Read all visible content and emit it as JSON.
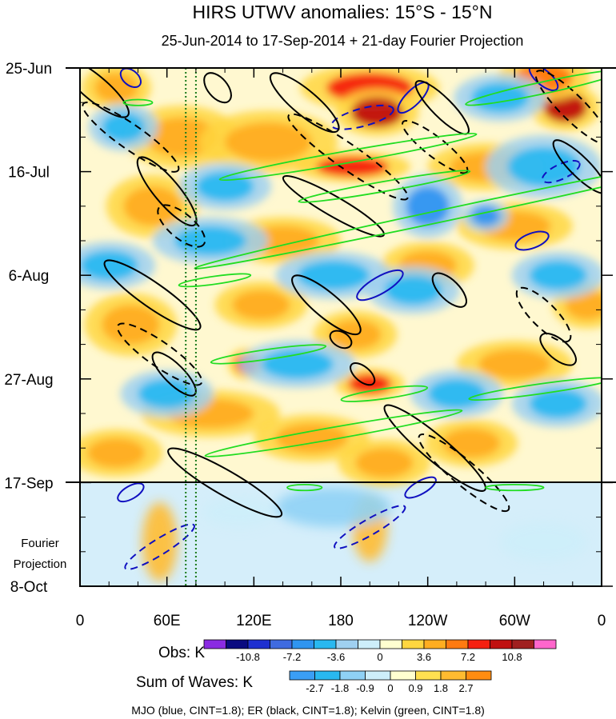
{
  "chart_data": {
    "type": "heatmap",
    "title": "HIRS UTWV anomalies: 15°S - 15°N",
    "subtitle": "25-Jun-2014 to 17-Sep-2014 + 21-day Fourier Projection",
    "x_tick_labels": [
      "0",
      "60E",
      "120E",
      "180",
      "120W",
      "60W",
      "0"
    ],
    "x_ticks_lon": [
      0,
      60,
      120,
      180,
      240,
      300,
      360
    ],
    "y_tick_labels": [
      "25-Jun",
      "16-Jul",
      "6-Aug",
      "27-Aug",
      "17-Sep",
      "8-Oct"
    ],
    "y_ticks_day": [
      0,
      21,
      42,
      63,
      84,
      105
    ],
    "projection_label": "Fourier Projection",
    "projection_start_day": 84,
    "dotted_lines_lon": [
      73,
      80
    ],
    "obs_colorbar": {
      "label": "Obs: K",
      "tick_labels": [
        "-10.8",
        "-7.2",
        "-3.6",
        "0",
        "3.6",
        "7.2",
        "10.8"
      ],
      "colors": [
        "#8a2be2",
        "#0a0a80",
        "#1e2fd0",
        "#3f6be0",
        "#2f95f0",
        "#29b8f0",
        "#9fd0f0",
        "#cdeefa",
        "#ffffd0",
        "#ffd640",
        "#ffad20",
        "#ff7a10",
        "#f52010",
        "#c01010",
        "#a02020",
        "#ff66cc"
      ]
    },
    "waves_colorbar": {
      "label": "Sum of Waves: K",
      "tick_labels": [
        "-2.7",
        "-1.8",
        "-0.9",
        "0",
        "0.9",
        "1.8",
        "2.7"
      ],
      "colors": [
        "#3a9ef5",
        "#29b8f0",
        "#8fd1f5",
        "#cdeefa",
        "#ffffd0",
        "#ffe050",
        "#ffbb30",
        "#ff8c10"
      ]
    },
    "footer": "MJO (blue, CINT=1.8); ER (black, CINT=1.8); Kelvin (green, CINT=1.8)",
    "anomaly_hotspots": [
      {
        "lon": 200,
        "day": 4,
        "value": 8,
        "rx": 30,
        "ry": 3
      },
      {
        "lon": 205,
        "day": 9,
        "value": 10,
        "rx": 18,
        "ry": 3
      },
      {
        "lon": 188,
        "day": 20,
        "value": 9,
        "rx": 25,
        "ry": 2
      },
      {
        "lon": 335,
        "day": 8,
        "value": 10,
        "rx": 15,
        "ry": 3
      },
      {
        "lon": 320,
        "day": 2,
        "value": 6,
        "rx": 20,
        "ry": 3
      },
      {
        "lon": 25,
        "day": 4,
        "value": 5,
        "rx": 15,
        "ry": 3
      },
      {
        "lon": 70,
        "day": 14,
        "value": 4,
        "rx": 25,
        "ry": 4
      },
      {
        "lon": 130,
        "day": 15,
        "value": 4,
        "rx": 30,
        "ry": 4
      },
      {
        "lon": 280,
        "day": 20,
        "value": 4,
        "rx": 25,
        "ry": 3
      },
      {
        "lon": 50,
        "day": 28,
        "value": 4,
        "rx": 20,
        "ry": 4
      },
      {
        "lon": 140,
        "day": 35,
        "value": 4,
        "rx": 25,
        "ry": 3
      },
      {
        "lon": 300,
        "day": 32,
        "value": 4,
        "rx": 25,
        "ry": 3
      },
      {
        "lon": 240,
        "day": 40,
        "value": 4,
        "rx": 20,
        "ry": 3
      },
      {
        "lon": 35,
        "day": 52,
        "value": 4,
        "rx": 20,
        "ry": 4
      },
      {
        "lon": 125,
        "day": 48,
        "value": 4,
        "rx": 20,
        "ry": 3
      },
      {
        "lon": 190,
        "day": 54,
        "value": 5,
        "rx": 18,
        "ry": 3
      },
      {
        "lon": 350,
        "day": 48,
        "value": 4,
        "rx": 15,
        "ry": 3
      },
      {
        "lon": 115,
        "day": 60,
        "value": 8,
        "rx": 8,
        "ry": 2
      },
      {
        "lon": 200,
        "day": 64,
        "value": 8,
        "rx": 15,
        "ry": 2
      },
      {
        "lon": 300,
        "day": 60,
        "value": 4,
        "rx": 25,
        "ry": 3
      },
      {
        "lon": 90,
        "day": 70,
        "value": 4,
        "rx": 30,
        "ry": 3
      },
      {
        "lon": 160,
        "day": 75,
        "value": 5,
        "rx": 25,
        "ry": 3
      },
      {
        "lon": 270,
        "day": 76,
        "value": 5,
        "rx": 20,
        "ry": 3
      },
      {
        "lon": 25,
        "day": 78,
        "value": 4,
        "rx": 20,
        "ry": 3
      },
      {
        "lon": 210,
        "day": 80,
        "value": 4,
        "rx": 20,
        "ry": 3
      },
      {
        "lon": 240,
        "day": 28,
        "value": -6,
        "rx": 15,
        "ry": 4
      },
      {
        "lon": 230,
        "day": 45,
        "value": -5,
        "rx": 20,
        "ry": 3
      },
      {
        "lon": 280,
        "day": 30,
        "value": -6,
        "rx": 10,
        "ry": 2
      },
      {
        "lon": 90,
        "day": 35,
        "value": -4,
        "rx": 25,
        "ry": 3
      },
      {
        "lon": 320,
        "day": 20,
        "value": -4,
        "rx": 25,
        "ry": 4
      },
      {
        "lon": 20,
        "day": 40,
        "value": -4,
        "rx": 20,
        "ry": 3
      },
      {
        "lon": 175,
        "day": 42,
        "value": -4,
        "rx": 25,
        "ry": 3
      },
      {
        "lon": 330,
        "day": 42,
        "value": -5,
        "rx": 20,
        "ry": 3
      },
      {
        "lon": 60,
        "day": 66,
        "value": -5,
        "rx": 20,
        "ry": 3
      },
      {
        "lon": 150,
        "day": 60,
        "value": -4,
        "rx": 25,
        "ry": 3
      },
      {
        "lon": 260,
        "day": 66,
        "value": -5,
        "rx": 20,
        "ry": 3
      },
      {
        "lon": 330,
        "day": 68,
        "value": -4,
        "rx": 20,
        "ry": 3
      },
      {
        "lon": 100,
        "day": 24,
        "value": -4,
        "rx": 20,
        "ry": 3
      },
      {
        "lon": 30,
        "day": 12,
        "value": -4,
        "rx": 15,
        "ry": 3
      },
      {
        "lon": 290,
        "day": 6,
        "value": -4,
        "rx": 20,
        "ry": 3
      }
    ],
    "projection_blobs": [
      {
        "lon": 55,
        "day": 96,
        "value": 1.8,
        "rx": 12,
        "ry": 8
      },
      {
        "lon": 200,
        "day": 93,
        "value": 1.8,
        "rx": 12,
        "ry": 7
      },
      {
        "lon": 175,
        "day": 89,
        "value": -1.2,
        "rx": 40,
        "ry": 4
      },
      {
        "lon": 320,
        "day": 96,
        "value": -0.9,
        "rx": 30,
        "ry": 4
      },
      {
        "lon": 110,
        "day": 90,
        "value": -0.9,
        "rx": 25,
        "ry": 3
      }
    ],
    "wave_contours": [
      {
        "wave": "MJO",
        "sign": "pos",
        "lon": 35,
        "day": 2,
        "rx": 8,
        "ry": 1.5,
        "angle": 40
      },
      {
        "wave": "MJO",
        "sign": "neg",
        "lon": 195,
        "day": 10,
        "rx": 22,
        "ry": 1.8,
        "angle": -15
      },
      {
        "wave": "MJO",
        "sign": "pos",
        "lon": 230,
        "day": 6,
        "rx": 14,
        "ry": 1.5,
        "angle": -45
      },
      {
        "wave": "MJO",
        "sign": "pos",
        "lon": 320,
        "day": 2,
        "rx": 12,
        "ry": 1.5,
        "angle": 40
      },
      {
        "wave": "MJO",
        "sign": "neg",
        "lon": 332,
        "day": 21,
        "rx": 14,
        "ry": 1.5,
        "angle": -25
      },
      {
        "wave": "MJO",
        "sign": "pos",
        "lon": 312,
        "day": 35,
        "rx": 12,
        "ry": 1.5,
        "angle": -20
      },
      {
        "wave": "MJO",
        "sign": "pos",
        "lon": 207,
        "day": 44,
        "rx": 18,
        "ry": 1.7,
        "angle": -30
      },
      {
        "wave": "MJO",
        "sign": "neg",
        "lon": 55,
        "day": 97,
        "rx": 28,
        "ry": 1.6,
        "angle": -32
      },
      {
        "wave": "MJO",
        "sign": "neg",
        "lon": 200,
        "day": 93,
        "rx": 28,
        "ry": 1.6,
        "angle": -30
      },
      {
        "wave": "MJO",
        "sign": "pos",
        "lon": 35,
        "day": 86,
        "rx": 10,
        "ry": 1.3,
        "angle": -30
      },
      {
        "wave": "MJO",
        "sign": "pos",
        "lon": 235,
        "day": 85,
        "rx": 12,
        "ry": 1.3,
        "angle": -30
      },
      {
        "wave": "ER",
        "sign": "pos",
        "lon": 10,
        "day": 4,
        "rx": 30,
        "ry": 2.5,
        "angle": 40
      },
      {
        "wave": "ER",
        "sign": "neg",
        "lon": 35,
        "day": 14,
        "rx": 40,
        "ry": 2.5,
        "angle": 35
      },
      {
        "wave": "ER",
        "sign": "pos",
        "lon": 60,
        "day": 25,
        "rx": 30,
        "ry": 2.5,
        "angle": 50
      },
      {
        "wave": "ER",
        "sign": "neg",
        "lon": 70,
        "day": 32,
        "rx": 20,
        "ry": 2.5,
        "angle": 40
      },
      {
        "wave": "ER",
        "sign": "pos",
        "lon": 50,
        "day": 46,
        "rx": 40,
        "ry": 2.5,
        "angle": 35
      },
      {
        "wave": "ER",
        "sign": "neg",
        "lon": 55,
        "day": 58,
        "rx": 35,
        "ry": 2.5,
        "angle": 35
      },
      {
        "wave": "ER",
        "sign": "pos",
        "lon": 65,
        "day": 62,
        "rx": 20,
        "ry": 2.0,
        "angle": 45
      },
      {
        "wave": "ER",
        "sign": "pos",
        "lon": 95,
        "day": 4,
        "rx": 12,
        "ry": 2.0,
        "angle": 50
      },
      {
        "wave": "ER",
        "sign": "pos",
        "lon": 155,
        "day": 7,
        "rx": 30,
        "ry": 2.5,
        "angle": 40
      },
      {
        "wave": "ER",
        "sign": "neg",
        "lon": 185,
        "day": 18,
        "rx": 50,
        "ry": 2.5,
        "angle": 35
      },
      {
        "wave": "ER",
        "sign": "pos",
        "lon": 175,
        "day": 28,
        "rx": 40,
        "ry": 2.0,
        "angle": 30
      },
      {
        "wave": "ER",
        "sign": "neg",
        "lon": 245,
        "day": 16,
        "rx": 28,
        "ry": 2.0,
        "angle": 38
      },
      {
        "wave": "ER",
        "sign": "pos",
        "lon": 250,
        "day": 8,
        "rx": 25,
        "ry": 2.0,
        "angle": 45
      },
      {
        "wave": "ER",
        "sign": "neg",
        "lon": 340,
        "day": 8,
        "rx": 35,
        "ry": 2.5,
        "angle": 45
      },
      {
        "wave": "ER",
        "sign": "pos",
        "lon": 345,
        "day": 20,
        "rx": 25,
        "ry": 2.0,
        "angle": 45
      },
      {
        "wave": "ER",
        "sign": "pos",
        "lon": 170,
        "day": 48,
        "rx": 30,
        "ry": 2.5,
        "angle": 40
      },
      {
        "wave": "ER",
        "sign": "pos",
        "lon": 255,
        "day": 45,
        "rx": 15,
        "ry": 2.0,
        "angle": 45
      },
      {
        "wave": "ER",
        "sign": "pos",
        "lon": 330,
        "day": 57,
        "rx": 15,
        "ry": 2.0,
        "angle": 40
      },
      {
        "wave": "ER",
        "sign": "neg",
        "lon": 320,
        "day": 50,
        "rx": 25,
        "ry": 2.5,
        "angle": 45
      },
      {
        "wave": "ER",
        "sign": "pos",
        "lon": 245,
        "day": 77,
        "rx": 45,
        "ry": 2.5,
        "angle": 40
      },
      {
        "wave": "ER",
        "sign": "neg",
        "lon": 265,
        "day": 82,
        "rx": 40,
        "ry": 2.5,
        "angle": 40
      },
      {
        "wave": "ER",
        "sign": "pos",
        "lon": 100,
        "day": 84,
        "rx": 45,
        "ry": 2.5,
        "angle": 30
      },
      {
        "wave": "ER",
        "sign": "pos",
        "lon": 195,
        "day": 62,
        "rx": 10,
        "ry": 1.5,
        "angle": 40
      },
      {
        "wave": "ER",
        "sign": "pos",
        "lon": 180,
        "day": 55,
        "rx": 8,
        "ry": 1.5,
        "angle": 30
      },
      {
        "wave": "Kelvin",
        "sign": "pos",
        "lon": 265,
        "day": 29,
        "rx": 190,
        "ry": 1.2,
        "angle": -12
      },
      {
        "wave": "Kelvin",
        "sign": "pos",
        "lon": 185,
        "day": 18,
        "rx": 90,
        "ry": 1.2,
        "angle": -10
      },
      {
        "wave": "Kelvin",
        "sign": "pos",
        "lon": 210,
        "day": 24,
        "rx": 60,
        "ry": 1.0,
        "angle": -10
      },
      {
        "wave": "Kelvin",
        "sign": "pos",
        "lon": 320,
        "day": 4,
        "rx": 55,
        "ry": 1.2,
        "angle": -12
      },
      {
        "wave": "Kelvin",
        "sign": "pos",
        "lon": 130,
        "day": 58,
        "rx": 40,
        "ry": 1.0,
        "angle": -8
      },
      {
        "wave": "Kelvin",
        "sign": "pos",
        "lon": 175,
        "day": 74,
        "rx": 90,
        "ry": 1.2,
        "angle": -10
      },
      {
        "wave": "Kelvin",
        "sign": "pos",
        "lon": 210,
        "day": 66,
        "rx": 30,
        "ry": 1.0,
        "angle": -8
      },
      {
        "wave": "Kelvin",
        "sign": "pos",
        "lon": 318,
        "day": 65,
        "rx": 50,
        "ry": 1.0,
        "angle": -8
      },
      {
        "wave": "Kelvin",
        "sign": "pos",
        "lon": 93,
        "day": 43,
        "rx": 25,
        "ry": 0.8,
        "angle": -8
      },
      {
        "wave": "Kelvin",
        "sign": "pos",
        "lon": 40,
        "day": 7,
        "rx": 10,
        "ry": 0.6,
        "angle": 0
      },
      {
        "wave": "Kelvin",
        "sign": "pos",
        "lon": 155,
        "day": 85,
        "rx": 12,
        "ry": 0.6,
        "angle": 0
      },
      {
        "wave": "Kelvin",
        "sign": "pos",
        "lon": 300,
        "day": 85,
        "rx": 20,
        "ry": 0.6,
        "angle": 0
      }
    ]
  }
}
